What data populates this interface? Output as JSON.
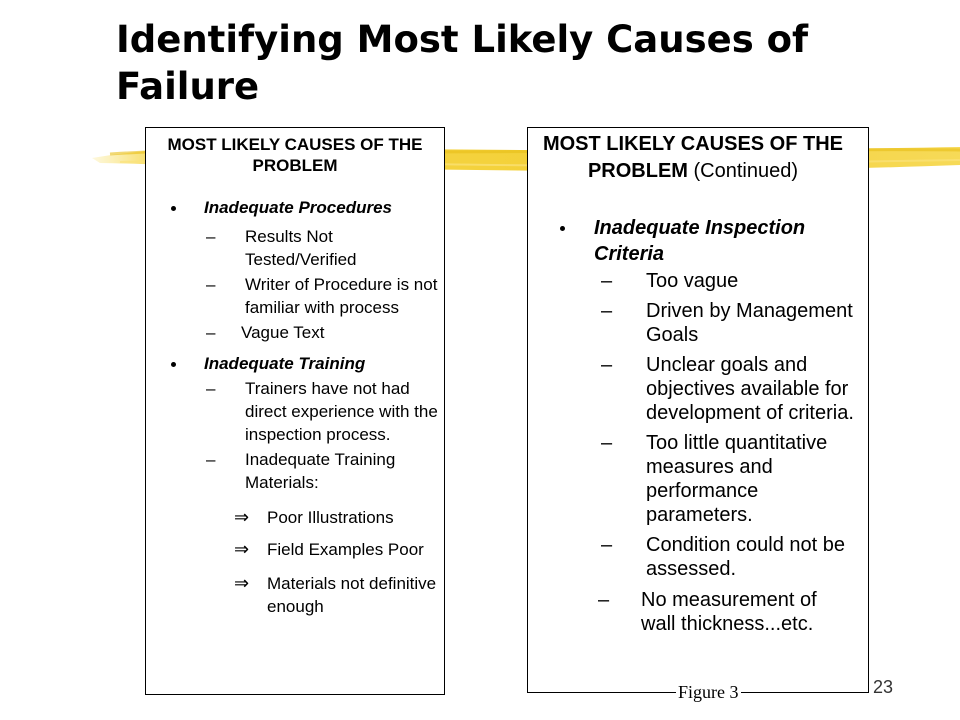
{
  "slide": {
    "title": "Identifying Most Likely Causes of Failure",
    "page_number": "23",
    "figure_caption": "Figure 3",
    "accent_color": "#f5d33a"
  },
  "left_box": {
    "heading": "MOST LIKELY CAUSES OF THE PROBLEM",
    "bullets": [
      {
        "label": "Inadequate Procedures",
        "items": [
          "Results Not Tested/Verified",
          "Writer of Procedure is not familiar with process",
          "Vague Text"
        ]
      },
      {
        "label": "Inadequate Training",
        "items": [
          "Trainers have not had direct experience with the inspection process.",
          "Inadequate Training Materials:"
        ],
        "arrow_items": [
          "Poor Illustrations",
          "Field Examples Poor",
          "Materials not definitive enough"
        ]
      }
    ]
  },
  "right_box": {
    "heading": "MOST LIKELY CAUSES OF THE PROBLEM",
    "heading_suffix": "(Continued)",
    "bullets": [
      {
        "label": "Inadequate Inspection Criteria",
        "items": [
          "Too vague",
          "Driven by Management Goals",
          "Unclear goals and objectives available for development of criteria.",
          "Too little quantitative measures and performance parameters.",
          "Condition could not be assessed.",
          "No measurement of wall thickness...etc."
        ]
      }
    ]
  },
  "glyphs": {
    "dash": "–",
    "arrow": "⇒"
  }
}
